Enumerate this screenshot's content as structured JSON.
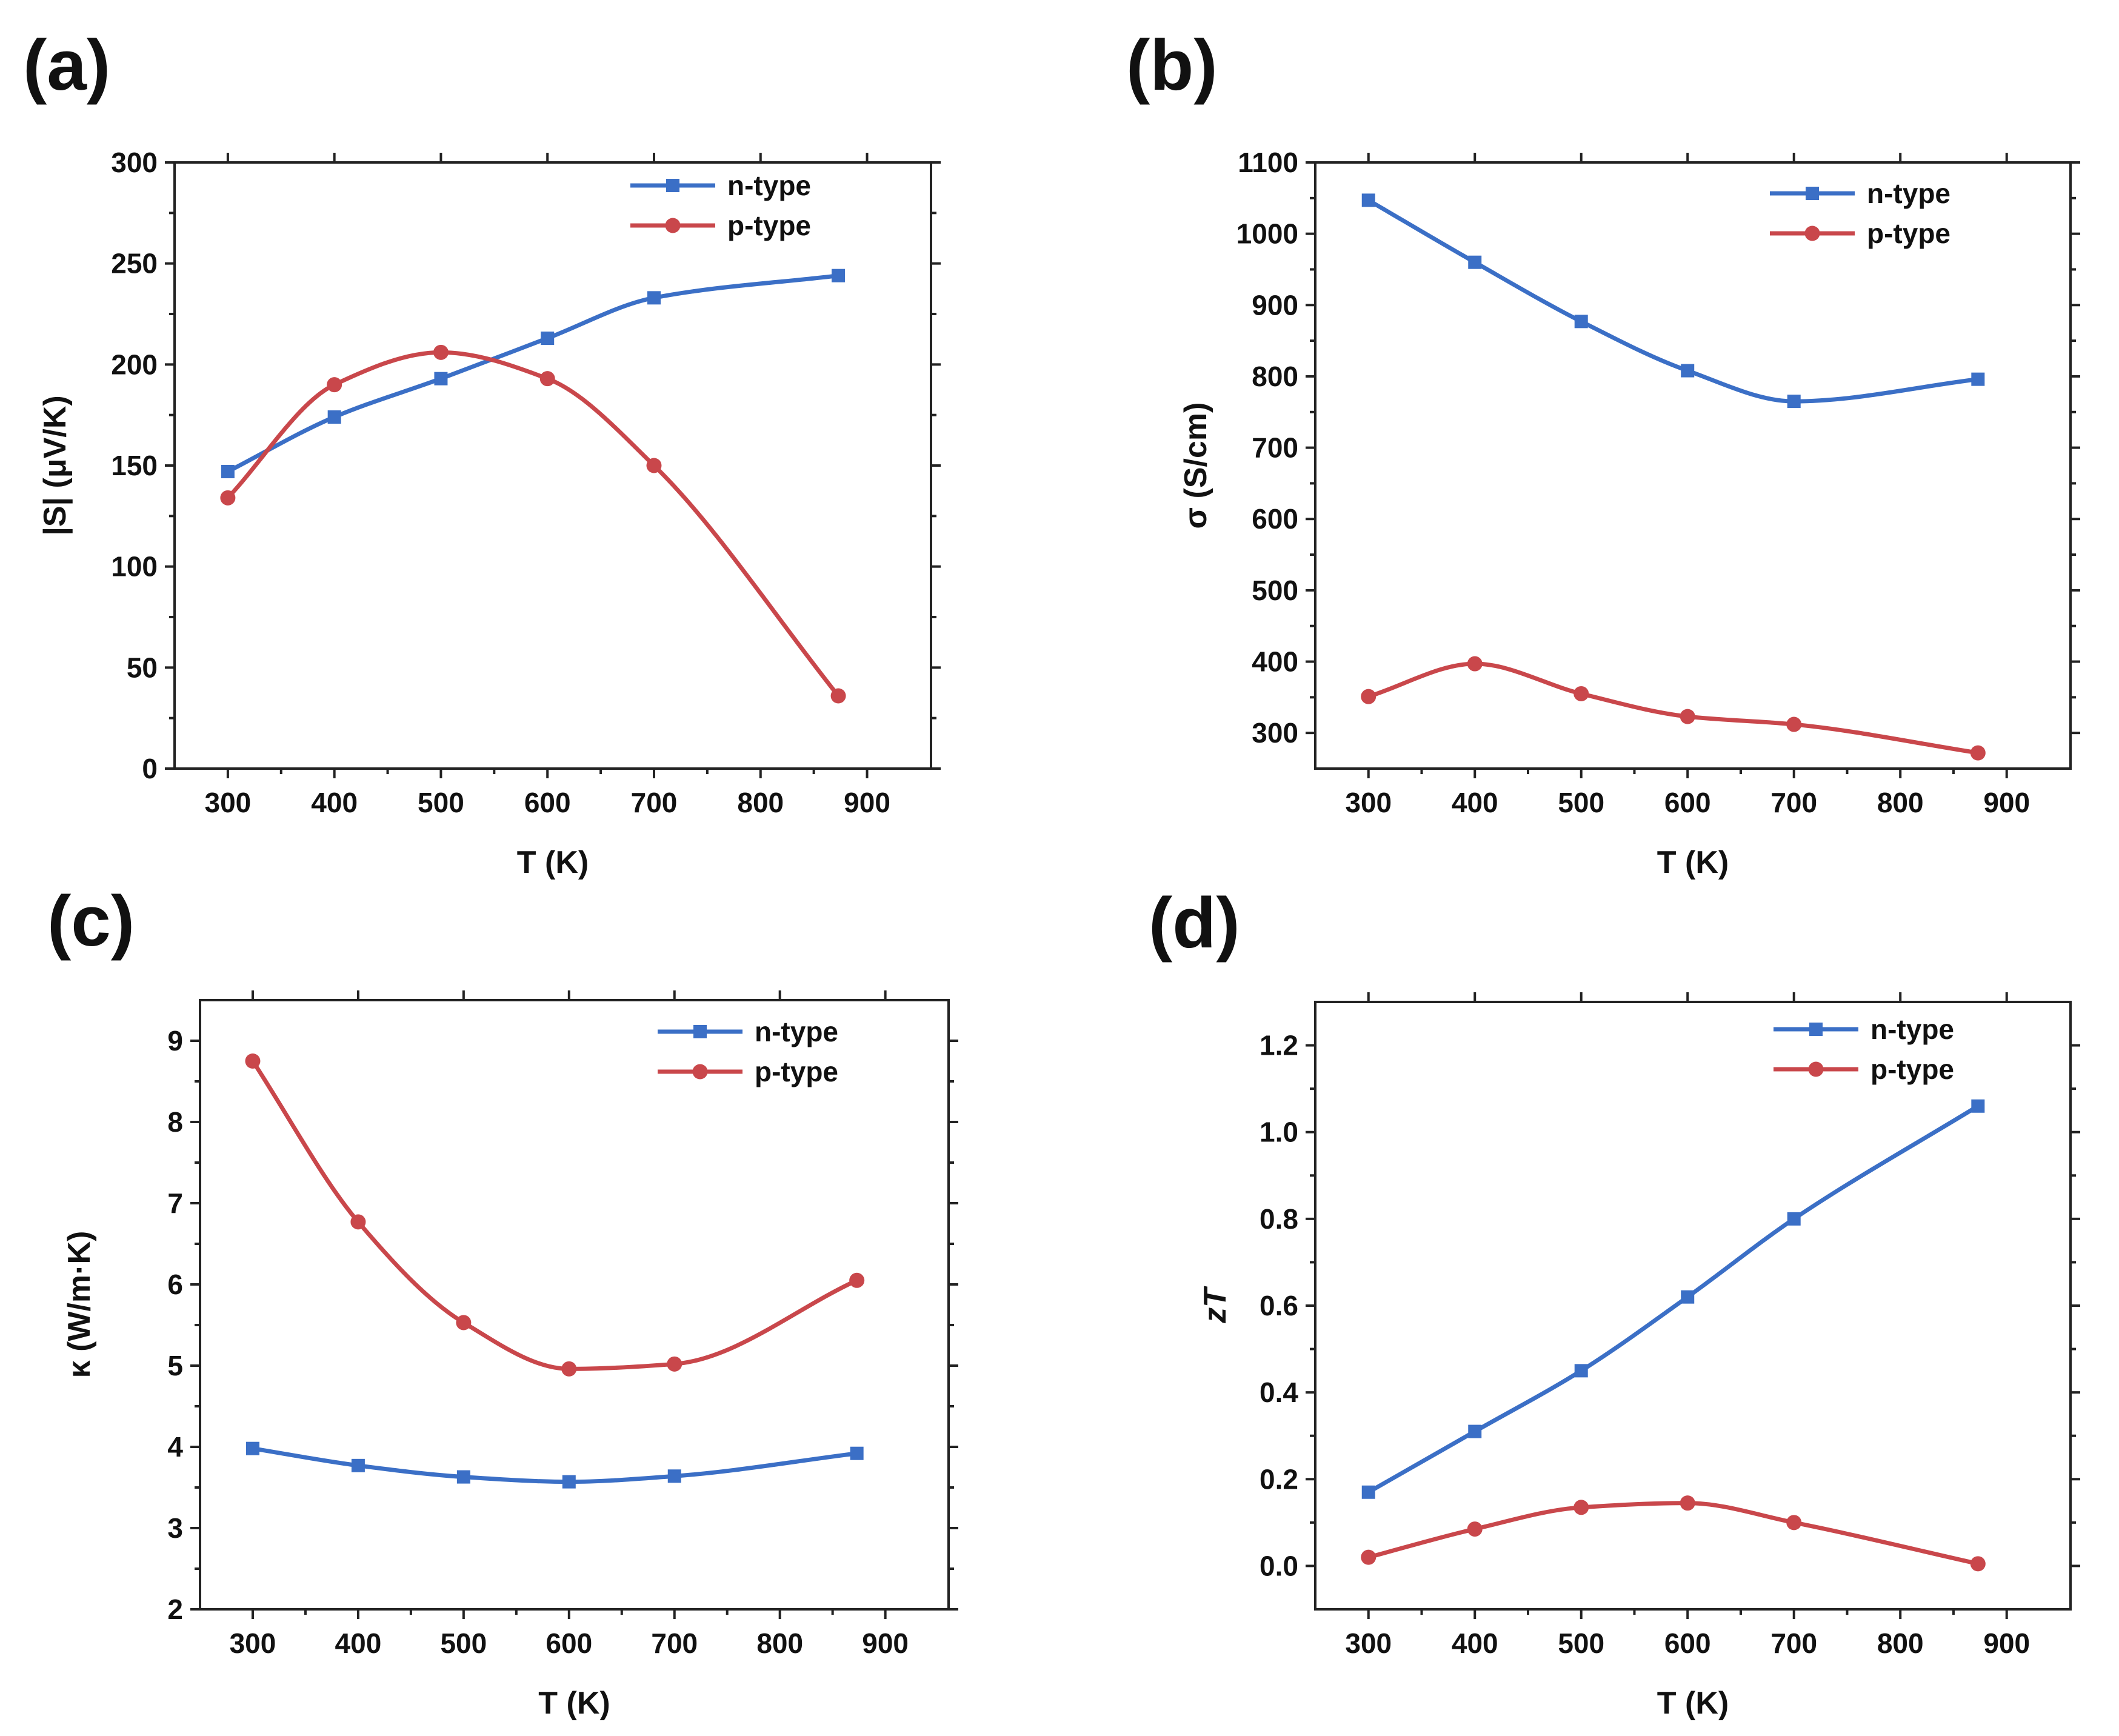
{
  "figure": {
    "colors": {
      "n_type": "#3b6fc6",
      "p_type": "#c9474b",
      "axis": "#222222"
    }
  },
  "chart_data": [
    {
      "panel_label": "(a)",
      "type": "line",
      "xlabel": "T (K)",
      "ylabel": "|S| (μV/K)",
      "xlim": [
        250,
        960
      ],
      "ylim": [
        0,
        300
      ],
      "xticks": [
        300,
        400,
        500,
        600,
        700,
        800,
        900
      ],
      "yticks": [
        0,
        50,
        100,
        150,
        200,
        250,
        300
      ],
      "xtick_labels": [
        "300",
        "400",
        "500",
        "600",
        "700",
        "800",
        "900"
      ],
      "ytick_labels": [
        "0",
        "50",
        "100",
        "150",
        "200",
        "250",
        "300"
      ],
      "legend_position": "top-right",
      "series": [
        {
          "name": "n-type",
          "marker": "square",
          "x": [
            300,
            400,
            500,
            600,
            700,
            873
          ],
          "y": [
            147,
            174,
            193,
            213,
            233,
            244
          ]
        },
        {
          "name": "p-type",
          "marker": "circle",
          "x": [
            300,
            400,
            500,
            600,
            700,
            873
          ],
          "y": [
            134,
            190,
            206,
            193,
            150,
            36
          ]
        }
      ]
    },
    {
      "panel_label": "(b)",
      "type": "line",
      "xlabel": "T (K)",
      "ylabel": "σ (S/cm)",
      "xlim": [
        250,
        960
      ],
      "ylim": [
        250,
        1100
      ],
      "xticks": [
        300,
        400,
        500,
        600,
        700,
        800,
        900
      ],
      "yticks": [
        300,
        400,
        500,
        600,
        700,
        800,
        900,
        1000,
        1100
      ],
      "xtick_labels": [
        "300",
        "400",
        "500",
        "600",
        "700",
        "800",
        "900"
      ],
      "ytick_labels": [
        "300",
        "400",
        "500",
        "600",
        "700",
        "800",
        "900",
        "1000",
        "1100"
      ],
      "legend_position": "top-right",
      "series": [
        {
          "name": "n-type",
          "marker": "square",
          "x": [
            300,
            400,
            500,
            600,
            700,
            873
          ],
          "y": [
            1047,
            960,
            877,
            808,
            765,
            796
          ]
        },
        {
          "name": "p-type",
          "marker": "circle",
          "x": [
            300,
            400,
            500,
            600,
            700,
            873
          ],
          "y": [
            351,
            397,
            355,
            323,
            312,
            272
          ]
        }
      ]
    },
    {
      "panel_label": "(c)",
      "type": "line",
      "xlabel": "T (K)",
      "ylabel": "κ (W/m·K)",
      "xlim": [
        250,
        960
      ],
      "ylim": [
        2,
        9.5
      ],
      "xticks": [
        300,
        400,
        500,
        600,
        700,
        800,
        900
      ],
      "yticks": [
        2,
        3,
        4,
        5,
        6,
        7,
        8,
        9
      ],
      "xtick_labels": [
        "300",
        "400",
        "500",
        "600",
        "700",
        "800",
        "900"
      ],
      "ytick_labels": [
        "2",
        "3",
        "4",
        "5",
        "6",
        "7",
        "8",
        "9"
      ],
      "legend_position": "top-right",
      "series": [
        {
          "name": "n-type",
          "marker": "square",
          "x": [
            300,
            400,
            500,
            600,
            700,
            873
          ],
          "y": [
            3.98,
            3.77,
            3.63,
            3.57,
            3.64,
            3.92
          ]
        },
        {
          "name": "p-type",
          "marker": "circle",
          "x": [
            300,
            400,
            500,
            600,
            700,
            873
          ],
          "y": [
            8.75,
            6.77,
            5.53,
            4.96,
            5.02,
            6.05
          ]
        }
      ]
    },
    {
      "panel_label": "(d)",
      "type": "line",
      "xlabel": "T (K)",
      "ylabel": "zT",
      "ylabel_italic": true,
      "xlim": [
        250,
        960
      ],
      "ylim": [
        -0.1,
        1.3
      ],
      "xticks": [
        300,
        400,
        500,
        600,
        700,
        800,
        900
      ],
      "yticks": [
        0.0,
        0.2,
        0.4,
        0.6,
        0.8,
        1.0,
        1.2
      ],
      "xtick_labels": [
        "300",
        "400",
        "500",
        "600",
        "700",
        "800",
        "900"
      ],
      "ytick_labels": [
        "0.0",
        "0.2",
        "0.4",
        "0.6",
        "0.8",
        "1.0",
        "1.2"
      ],
      "legend_position": "top-right",
      "series": [
        {
          "name": "n-type",
          "marker": "square",
          "x": [
            300,
            400,
            500,
            600,
            700,
            873
          ],
          "y": [
            0.17,
            0.31,
            0.45,
            0.62,
            0.8,
            1.06
          ]
        },
        {
          "name": "p-type",
          "marker": "circle",
          "x": [
            300,
            400,
            500,
            600,
            700,
            873
          ],
          "y": [
            0.02,
            0.085,
            0.135,
            0.145,
            0.1,
            0.005
          ]
        }
      ]
    }
  ]
}
